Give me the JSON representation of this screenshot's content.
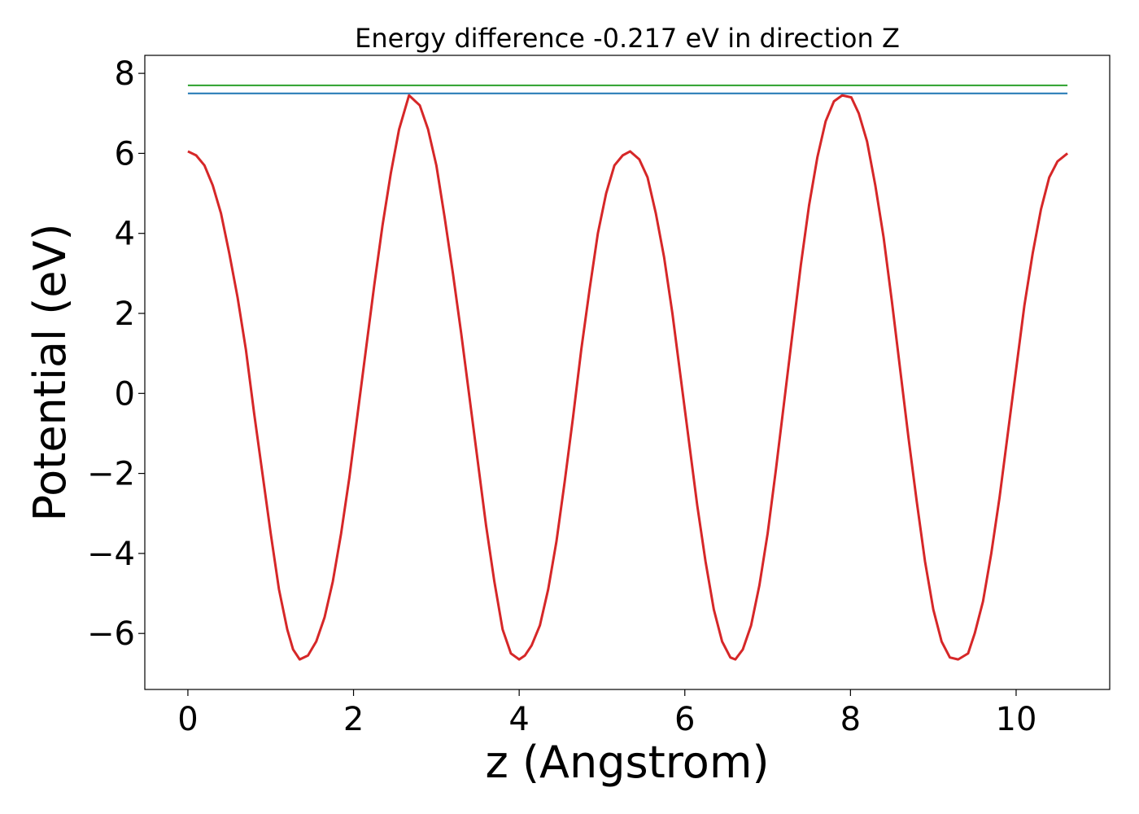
{
  "chart_data": {
    "type": "line",
    "title": "Energy difference -0.217 eV in direction Z",
    "xlabel": "z (Angstrom)",
    "ylabel": "Potential (eV)",
    "xlim": [
      -0.52,
      11.13
    ],
    "ylim": [
      -7.4,
      8.45
    ],
    "xticks": [
      0,
      2,
      4,
      6,
      8,
      10
    ],
    "yticks": [
      -6,
      -4,
      -2,
      0,
      2,
      4,
      6,
      8
    ],
    "xtick_labels": [
      "0",
      "2",
      "4",
      "6",
      "8",
      "10"
    ],
    "ytick_labels": [
      "−6",
      "−4",
      "−2",
      "0",
      "2",
      "4",
      "6",
      "8"
    ],
    "grid": false,
    "legend": "none",
    "series": [
      {
        "color": "#d62728",
        "x": [
          0.0,
          0.1,
          0.2,
          0.3,
          0.4,
          0.5,
          0.6,
          0.7,
          0.8,
          0.9,
          1.0,
          1.1,
          1.2,
          1.27,
          1.35,
          1.45,
          1.55,
          1.65,
          1.75,
          1.85,
          1.95,
          2.05,
          2.15,
          2.25,
          2.35,
          2.45,
          2.55,
          2.67,
          2.8,
          2.9,
          3.0,
          3.1,
          3.2,
          3.3,
          3.4,
          3.5,
          3.6,
          3.7,
          3.8,
          3.9,
          4.0,
          4.07,
          4.15,
          4.25,
          4.35,
          4.45,
          4.55,
          4.65,
          4.75,
          4.85,
          4.95,
          5.05,
          5.15,
          5.25,
          5.34,
          5.45,
          5.55,
          5.65,
          5.75,
          5.85,
          5.95,
          6.05,
          6.15,
          6.25,
          6.35,
          6.45,
          6.55,
          6.61,
          6.7,
          6.8,
          6.9,
          7.0,
          7.1,
          7.2,
          7.3,
          7.4,
          7.5,
          7.6,
          7.7,
          7.8,
          7.9,
          8.01,
          8.1,
          8.2,
          8.3,
          8.4,
          8.5,
          8.6,
          8.7,
          8.8,
          8.9,
          9.0,
          9.1,
          9.2,
          9.3,
          9.42,
          9.5,
          9.6,
          9.7,
          9.8,
          9.9,
          10.0,
          10.1,
          10.2,
          10.3,
          10.4,
          10.5,
          10.62
        ],
        "y": [
          6.05,
          5.95,
          5.7,
          5.2,
          4.5,
          3.5,
          2.4,
          1.1,
          -0.5,
          -2.0,
          -3.5,
          -4.9,
          -5.9,
          -6.4,
          -6.65,
          -6.55,
          -6.2,
          -5.6,
          -4.7,
          -3.5,
          -2.1,
          -0.5,
          1.1,
          2.7,
          4.2,
          5.5,
          6.6,
          7.45,
          7.2,
          6.6,
          5.7,
          4.4,
          3.0,
          1.5,
          -0.1,
          -1.7,
          -3.3,
          -4.7,
          -5.9,
          -6.5,
          -6.65,
          -6.55,
          -6.3,
          -5.8,
          -4.9,
          -3.7,
          -2.2,
          -0.6,
          1.1,
          2.6,
          4.0,
          5.0,
          5.7,
          5.95,
          6.05,
          5.85,
          5.4,
          4.5,
          3.4,
          2.0,
          0.4,
          -1.2,
          -2.8,
          -4.2,
          -5.4,
          -6.2,
          -6.6,
          -6.65,
          -6.4,
          -5.8,
          -4.8,
          -3.5,
          -1.9,
          -0.2,
          1.5,
          3.2,
          4.7,
          5.9,
          6.8,
          7.3,
          7.45,
          7.4,
          7.0,
          6.3,
          5.2,
          3.9,
          2.3,
          0.6,
          -1.1,
          -2.7,
          -4.2,
          -5.4,
          -6.2,
          -6.6,
          -6.65,
          -6.5,
          -6.0,
          -5.2,
          -4.0,
          -2.6,
          -1.0,
          0.6,
          2.2,
          3.5,
          4.6,
          5.4,
          5.8,
          6.0
        ]
      },
      {
        "color": "#2ca02c",
        "x": [
          0.0,
          10.62
        ],
        "y": [
          7.7,
          7.7
        ]
      },
      {
        "color": "#1f77b4",
        "x": [
          0.0,
          10.62
        ],
        "y": [
          7.5,
          7.5
        ]
      }
    ]
  }
}
